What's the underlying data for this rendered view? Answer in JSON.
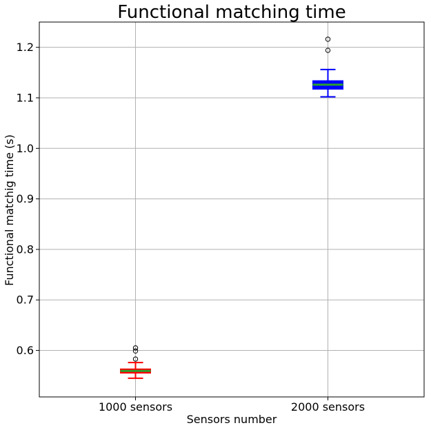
{
  "chart_data": {
    "type": "box",
    "title": "Functional matching time",
    "xlabel": "Sensors number",
    "ylabel": "Functional matchig time (s)",
    "categories": [
      "1000 sensors",
      "2000 sensors"
    ],
    "ylim": [
      0.508,
      1.25
    ],
    "yticks": [
      0.6,
      0.7,
      0.8,
      0.9,
      1.0,
      1.1,
      1.2
    ],
    "ytick_labels": [
      "0.6",
      "0.7",
      "0.8",
      "0.9",
      "1.0",
      "1.1",
      "1.2"
    ],
    "grid": true,
    "boxes": [
      {
        "category": "1000 sensors",
        "whisker_low": 0.545,
        "q1": 0.555,
        "median": 0.5595,
        "q3": 0.5635,
        "whisker_high": 0.576,
        "outliers": [
          0.605,
          0.599,
          0.583
        ],
        "color": "#ff0000",
        "median_color": "#2ca02c"
      },
      {
        "category": "2000 sensors",
        "whisker_low": 1.102,
        "q1": 1.117,
        "median": 1.126,
        "q3": 1.134,
        "whisker_high": 1.156,
        "outliers": [
          1.216,
          1.194
        ],
        "color": "#0000ff",
        "median_color": "#2ca02c"
      }
    ]
  }
}
